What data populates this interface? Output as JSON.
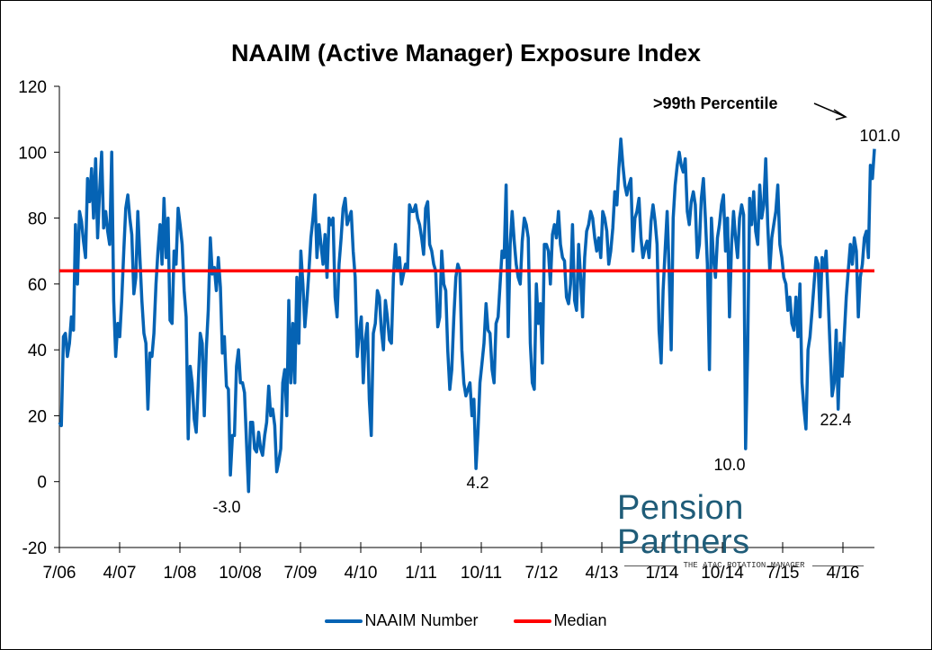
{
  "chart_data": {
    "type": "line",
    "title": "NAAIM (Active Manager) Exposure Index",
    "xlabel": "",
    "ylabel": "",
    "ylim": [
      -20,
      120
    ],
    "yticks": [
      -20,
      0,
      20,
      40,
      60,
      80,
      100,
      120
    ],
    "xtick_labels": [
      "7/06",
      "4/07",
      "1/08",
      "10/08",
      "7/09",
      "4/10",
      "1/11",
      "10/11",
      "7/12",
      "4/13",
      "1/14",
      "10/14",
      "7/15",
      "4/16"
    ],
    "grid": false,
    "legend_position": "bottom",
    "series": [
      {
        "name": "NAAIM Number",
        "color": "#0563b4",
        "values": [
          18,
          17,
          44,
          45,
          38,
          42,
          50,
          46,
          78,
          60,
          82,
          79,
          73,
          68,
          92,
          85,
          95,
          80,
          98,
          74,
          88,
          100,
          77,
          82,
          76,
          72,
          100,
          55,
          38,
          48,
          44,
          55,
          70,
          83,
          87,
          80,
          75,
          57,
          62,
          82,
          68,
          55,
          45,
          42,
          22,
          39,
          38,
          45,
          60,
          70,
          78,
          66,
          86,
          68,
          80,
          49,
          48,
          70,
          66,
          83,
          78,
          72,
          58,
          50,
          13,
          35,
          30,
          19,
          15,
          30,
          45,
          42,
          20,
          40,
          52,
          74,
          63,
          65,
          58,
          68,
          59,
          39,
          44,
          29,
          28,
          2,
          14,
          14,
          35,
          40,
          30,
          30,
          27,
          12,
          -3,
          18,
          18,
          10,
          9,
          15,
          10,
          8,
          14,
          18,
          29,
          20,
          22,
          17,
          3,
          6,
          10,
          30,
          34,
          20,
          55,
          30,
          48,
          30,
          62,
          42,
          70,
          60,
          47,
          55,
          64,
          74,
          80,
          87,
          68,
          78,
          72,
          66,
          75,
          62,
          80,
          78,
          80,
          56,
          50,
          66,
          74,
          83,
          86,
          78,
          80,
          82,
          70,
          62,
          38,
          45,
          50,
          30,
          43,
          48,
          25,
          14,
          45,
          48,
          58,
          56,
          46,
          40,
          55,
          50,
          43,
          42,
          62,
          72,
          64,
          68,
          60,
          63,
          66,
          64,
          84,
          82,
          82,
          84,
          80,
          78,
          74,
          69,
          83,
          85,
          72,
          70,
          66,
          64,
          47,
          50,
          70,
          60,
          58,
          40,
          28,
          34,
          50,
          62,
          66,
          64,
          40,
          30,
          26,
          28,
          30,
          20,
          25,
          4,
          15,
          30,
          36,
          42,
          54,
          46,
          45,
          34,
          30,
          48,
          50,
          60,
          70,
          68,
          90,
          44,
          72,
          82,
          73,
          66,
          62,
          60,
          73,
          80,
          78,
          74,
          42,
          30,
          28,
          60,
          48,
          54,
          36,
          72,
          72,
          70,
          60,
          75,
          78,
          74,
          82,
          72,
          68,
          67,
          56,
          54,
          60,
          78,
          55,
          52,
          72,
          62,
          50,
          68,
          76,
          78,
          82,
          80,
          74,
          70,
          74,
          68,
          82,
          80,
          76,
          66,
          70,
          77,
          88,
          84,
          95,
          104,
          96,
          90,
          87,
          90,
          92,
          70,
          80,
          82,
          86,
          74,
          68,
          71,
          73,
          68,
          79,
          84,
          79,
          72,
          46,
          36,
          58,
          70,
          82,
          64,
          40,
          80,
          90,
          96,
          100,
          96,
          94,
          98,
          82,
          78,
          85,
          88,
          84,
          68,
          72,
          86,
          92,
          80,
          66,
          34,
          80,
          68,
          62,
          74,
          78,
          84,
          87,
          70,
          80,
          50,
          72,
          82,
          74,
          68,
          80,
          84,
          81,
          10,
          40,
          86,
          78,
          88,
          76,
          72,
          90,
          80,
          84,
          98,
          78,
          64,
          74,
          78,
          82,
          90,
          72,
          68,
          62,
          60,
          52,
          56,
          48,
          46,
          56,
          44,
          60,
          30,
          22,
          16,
          40,
          44,
          52,
          60,
          68,
          66,
          50,
          68,
          64,
          70,
          56,
          40,
          26,
          30,
          46,
          22,
          42,
          32,
          44,
          56,
          64,
          72,
          66,
          74,
          70,
          50,
          62,
          66,
          74,
          76,
          68,
          96,
          92,
          101
        ]
      },
      {
        "name": "Median",
        "color": "#ff0000",
        "values": [
          64
        ]
      }
    ],
    "annotations": [
      {
        "text": "-3.0",
        "value": -3.0,
        "near": "10/08"
      },
      {
        "text": "4.2",
        "value": 4.2,
        "near": "10/11"
      },
      {
        "text": "10.0",
        "value": 10.0,
        "near": "10/14"
      },
      {
        "text": "22.4",
        "value": 22.4,
        "near": "7/15-4/16"
      },
      {
        "text": "101.0",
        "value": 101.0,
        "near": "end"
      },
      {
        "text": ">99th Percentile",
        "bold": true,
        "arrow": true
      }
    ]
  },
  "legend": {
    "items": [
      {
        "label": "NAAIM Number",
        "color": "#0563b4"
      },
      {
        "label": "Median",
        "color": "#ff0000"
      }
    ]
  },
  "logo": {
    "main": "Pension Partners",
    "sub": "THE ATAC ROTATION MANAGER"
  }
}
